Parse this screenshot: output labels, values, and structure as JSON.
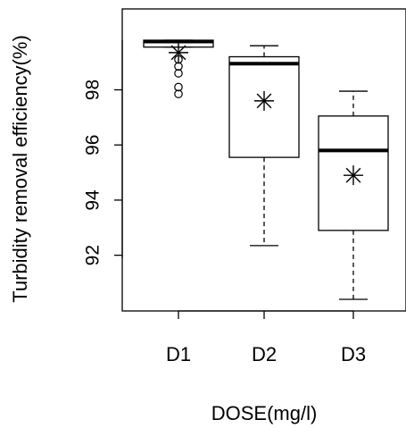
{
  "chart_data": {
    "type": "boxplot",
    "categories": [
      "D1",
      "D2",
      "D3"
    ],
    "xlabel": "DOSE(mg/l)",
    "ylabel": "Turbidity removal efficiency(%)",
    "yticks": [
      92,
      94,
      96,
      98
    ],
    "ylim": [
      90,
      100
    ],
    "boxes": [
      {
        "category": "D1",
        "whisker_low": 99.55,
        "q1": 99.55,
        "median": 99.75,
        "q3": 99.8,
        "whisker_high": 99.8,
        "mean": 99.35,
        "outliers": [
          99.1,
          98.85,
          98.6,
          98.1,
          97.85
        ]
      },
      {
        "category": "D2",
        "whisker_low": 92.35,
        "q1": 95.55,
        "median": 98.95,
        "q3": 99.2,
        "whisker_high": 99.6,
        "mean": 97.6,
        "outliers": []
      },
      {
        "category": "D3",
        "whisker_low": 90.4,
        "q1": 92.9,
        "median": 95.8,
        "q3": 97.05,
        "whisker_high": 97.95,
        "mean": 94.9,
        "outliers": []
      }
    ]
  }
}
